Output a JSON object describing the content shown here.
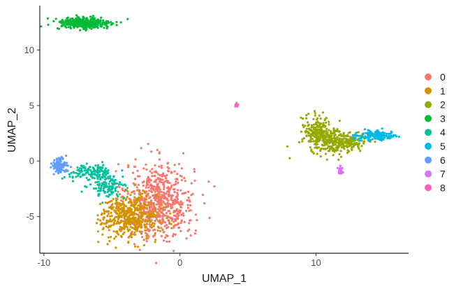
{
  "chart_data": {
    "type": "scatter",
    "title": "",
    "xlabel": "UMAP_1",
    "ylabel": "UMAP_2",
    "xlim": [
      -10.3,
      16.8
    ],
    "ylim": [
      -8.3,
      14.0
    ],
    "x_ticks": [
      -10,
      0,
      10
    ],
    "x_tick_labels": [
      "-10",
      "0",
      "10"
    ],
    "y_ticks": [
      -5,
      0,
      5,
      10
    ],
    "y_tick_labels": [
      "-5",
      "0",
      "5",
      "10"
    ],
    "grid": false,
    "legend_position": "right",
    "series": [
      {
        "name": "0",
        "color": "#F8766D",
        "clusters": [
          {
            "cx": -1.5,
            "cy": -3.6,
            "sx": 1.25,
            "sy": 1.7,
            "n": 650
          }
        ]
      },
      {
        "name": "1",
        "color": "#D39200",
        "clusters": [
          {
            "cx": -3.7,
            "cy": -5.0,
            "sx": 1.05,
            "sy": 1.0,
            "n": 480
          }
        ]
      },
      {
        "name": "2",
        "color": "#93AA00",
        "clusters": [
          {
            "cx": 10.0,
            "cy": 2.8,
            "sx": 0.5,
            "sy": 0.65,
            "n": 160
          },
          {
            "cx": 11.2,
            "cy": 1.8,
            "sx": 0.8,
            "sy": 0.55,
            "n": 220
          },
          {
            "cx": 12.5,
            "cy": 1.6,
            "sx": 0.6,
            "sy": 0.35,
            "n": 90
          }
        ]
      },
      {
        "name": "3",
        "color": "#00BA38",
        "clusters": [
          {
            "cx": -7.0,
            "cy": 12.4,
            "sx": 1.0,
            "sy": 0.28,
            "n": 340
          }
        ]
      },
      {
        "name": "4",
        "color": "#00C19F",
        "clusters": [
          {
            "cx": -6.6,
            "cy": -1.0,
            "sx": 0.9,
            "sy": 0.35,
            "n": 140
          },
          {
            "cx": -5.4,
            "cy": -2.3,
            "sx": 0.6,
            "sy": 0.45,
            "n": 110
          }
        ]
      },
      {
        "name": "5",
        "color": "#00B9E3",
        "clusters": [
          {
            "cx": 14.5,
            "cy": 2.3,
            "sx": 0.7,
            "sy": 0.22,
            "n": 160
          }
        ]
      },
      {
        "name": "6",
        "color": "#619CFF",
        "clusters": [
          {
            "cx": -8.9,
            "cy": -0.4,
            "sx": 0.28,
            "sy": 0.32,
            "n": 110
          }
        ]
      },
      {
        "name": "7",
        "color": "#DB72FB",
        "clusters": [
          {
            "cx": 11.8,
            "cy": -0.8,
            "sx": 0.1,
            "sy": 0.25,
            "n": 22
          }
        ]
      },
      {
        "name": "8",
        "color": "#FF61C3",
        "clusters": [
          {
            "cx": 4.2,
            "cy": 5.05,
            "sx": 0.08,
            "sy": 0.07,
            "n": 8
          }
        ]
      }
    ]
  }
}
